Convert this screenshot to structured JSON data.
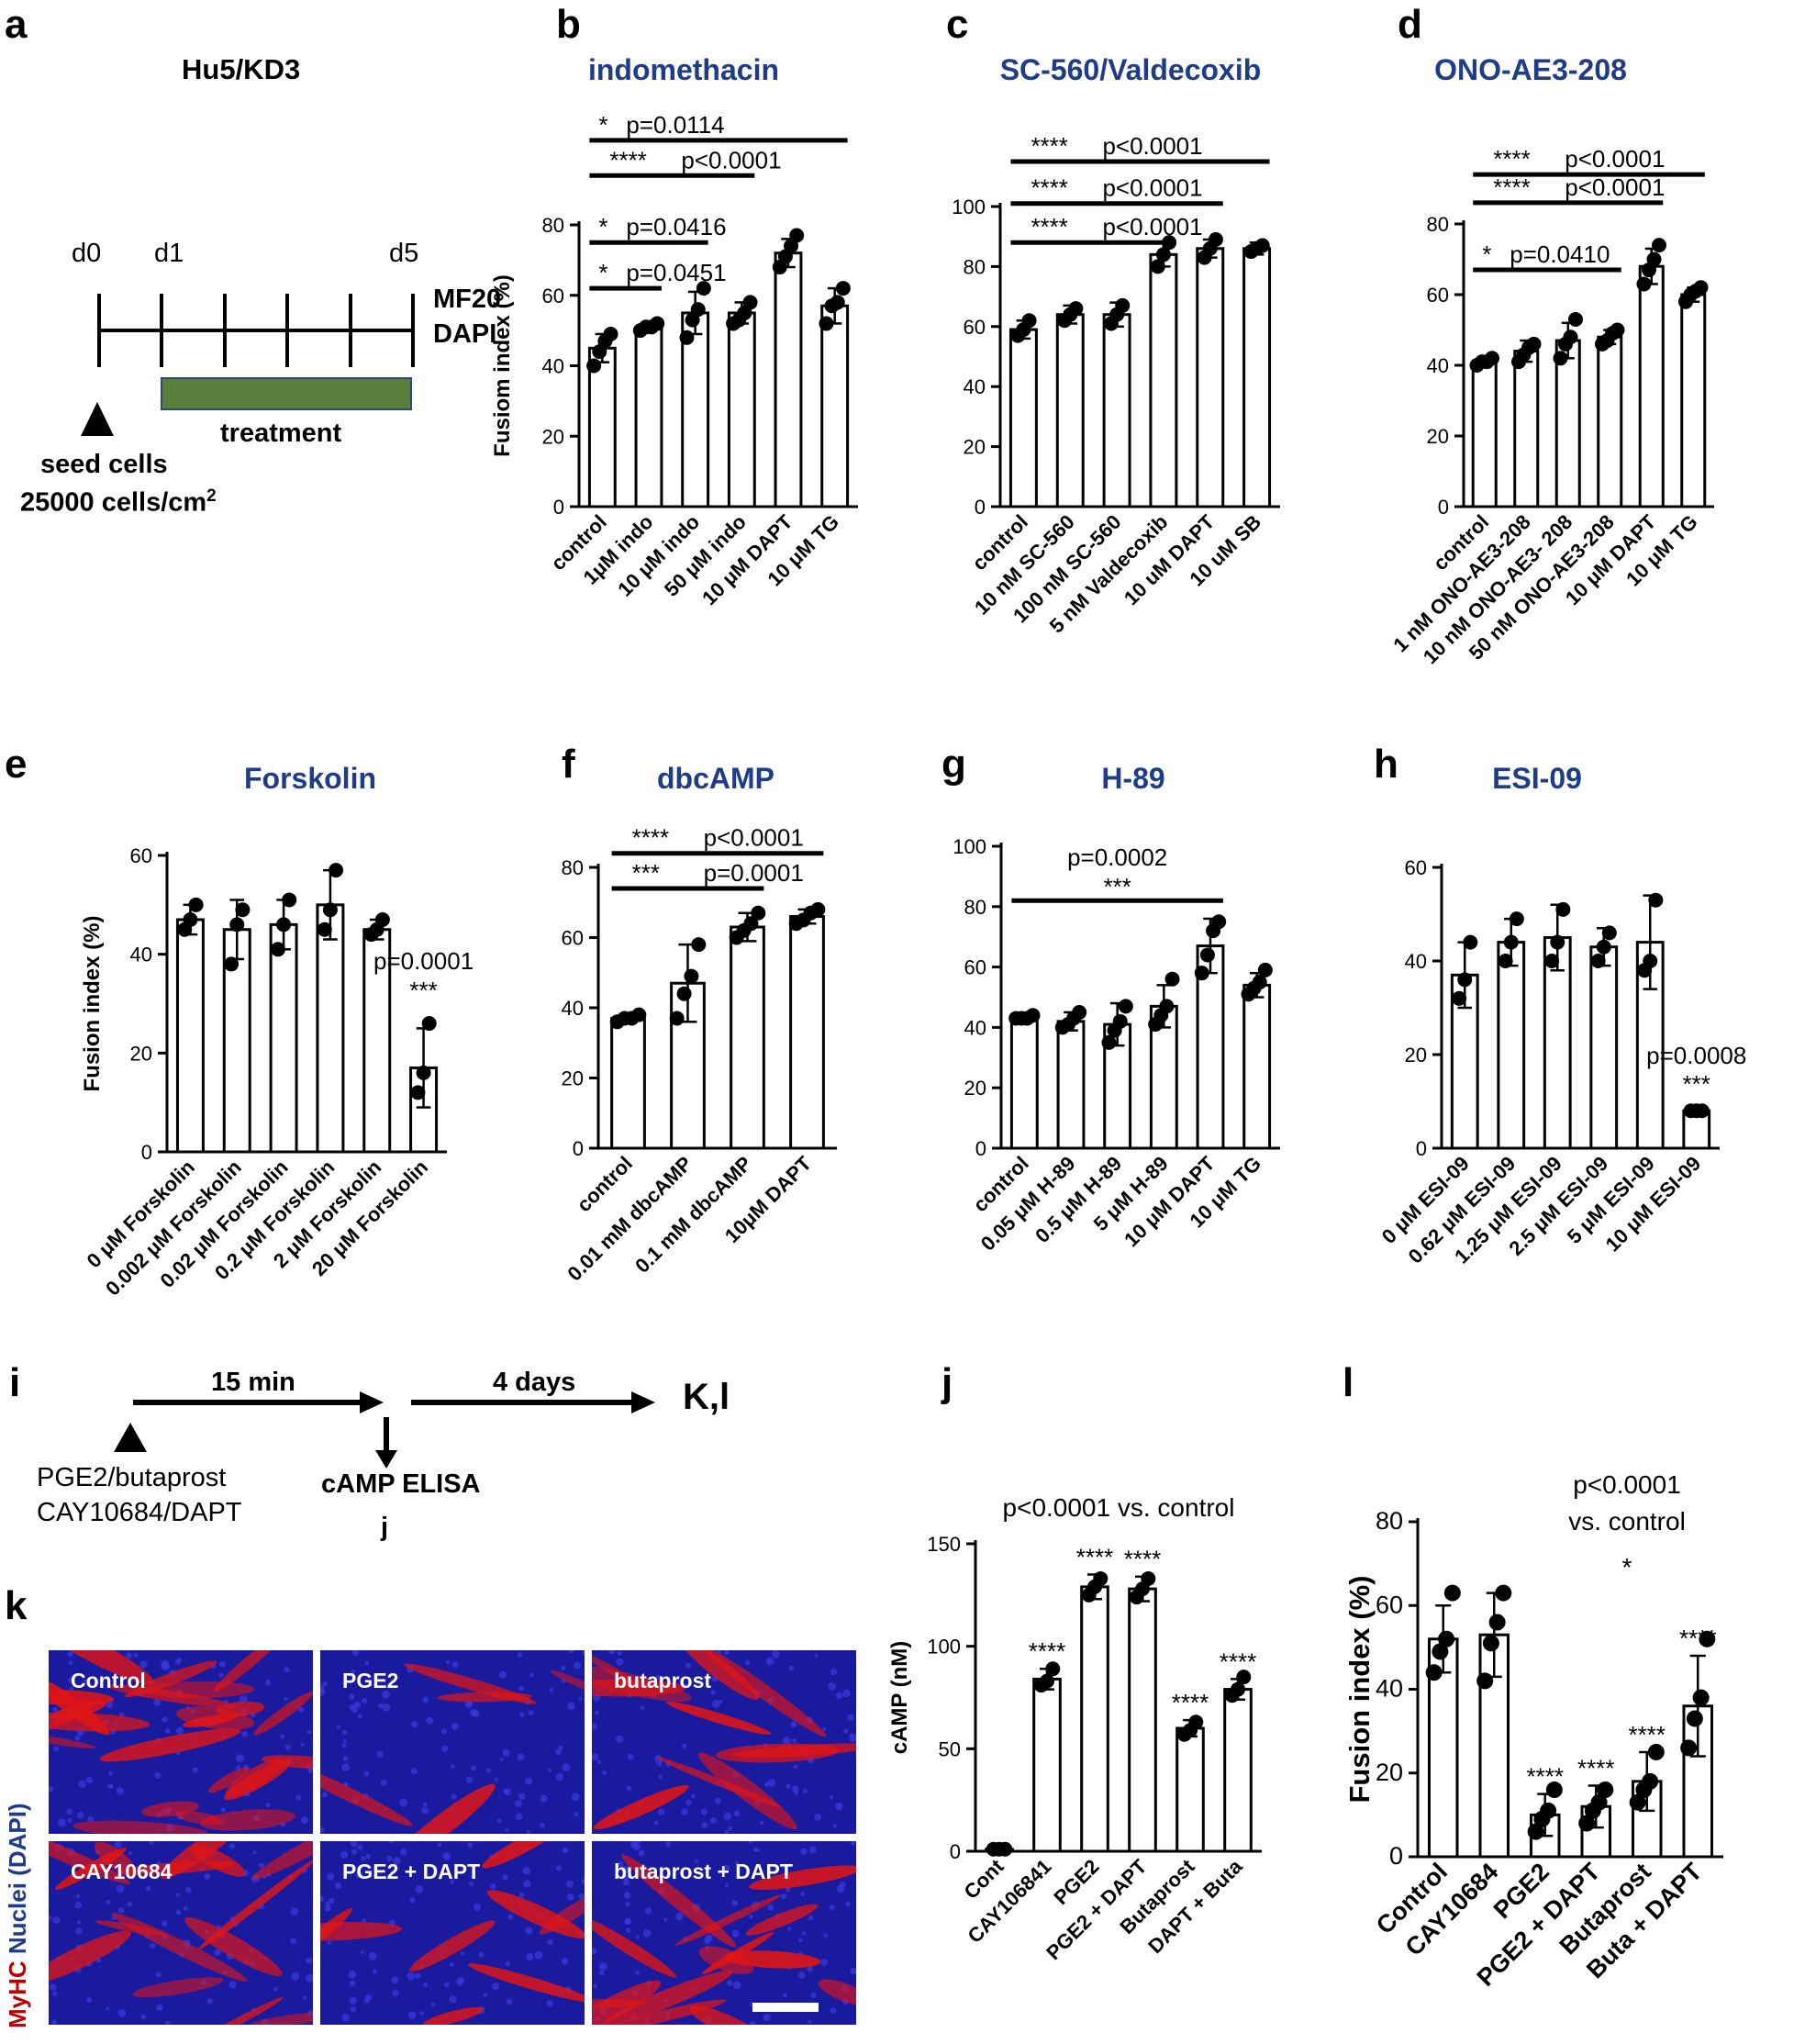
{
  "panel_letters": {
    "a": "a",
    "b": "b",
    "c": "c",
    "d": "d",
    "e": "e",
    "f": "f",
    "g": "g",
    "h": "h",
    "i": "i",
    "j": "j",
    "k": "k",
    "l": "l"
  },
  "panel_a": {
    "title": "Hu5/KD3",
    "days": [
      "d0",
      "d1",
      "d5"
    ],
    "stain_line1": "MF20",
    "stain_line2": "DAPI",
    "treatment_label": "treatment",
    "seed_line1": "seed cells",
    "seed_line2_prefix": "25000 cells/cm",
    "seed_superscript": "2",
    "treatment_color": "#5a7f3c"
  },
  "panel_i": {
    "duration1": "15 min",
    "duration2": "4 days",
    "end_label": "K,l",
    "agents_line1": "PGE2/butaprost",
    "agents_line2": "CAY10684/DAPT",
    "assay": "cAMP ELISA",
    "assay_ref": "j"
  },
  "panel_k": {
    "side_label_red": "MyHC",
    "side_label_blue": "Nuclei (DAPI)",
    "images": [
      "Control",
      "PGE2",
      "butaprost",
      "CAY10684",
      "PGE2  + DAPT",
      "butaprost + DAPT"
    ],
    "myhc_levels": [
      0.8,
      0.15,
      0.35,
      0.5,
      0.25,
      0.45
    ]
  },
  "colors": {
    "title_blue": "#1f3c88",
    "myhc_red": "#e01515",
    "dapi_blue": "#1a1a9e",
    "myhc_label_red": "#c00000",
    "dapi_label_blue": "#1f3c88"
  },
  "chart_data": [
    {
      "id": "b",
      "type": "bar",
      "title": "indomethacin",
      "ylabel": "Fusiom index (%)",
      "ylim": [
        0,
        80
      ],
      "yticks": [
        0,
        20,
        40,
        60,
        80
      ],
      "categories": [
        "control",
        "1μM indo",
        "10 μM indo",
        "50 μM indo",
        "10 μM DAPT",
        "10 μM TG"
      ],
      "values": [
        45,
        51,
        55,
        55,
        72,
        57
      ],
      "errors": [
        4,
        1,
        6,
        3,
        4,
        5
      ],
      "points": [
        [
          40,
          44,
          47,
          49
        ],
        [
          50,
          51,
          51,
          52
        ],
        [
          48,
          53,
          56,
          62
        ],
        [
          52,
          53,
          55,
          58
        ],
        [
          68,
          71,
          74,
          77
        ],
        [
          52,
          57,
          58,
          62
        ]
      ],
      "brackets": [
        {
          "from": 0,
          "to": 1,
          "y": 62,
          "stars": "*",
          "label": "p=0.0451"
        },
        {
          "from": 0,
          "to": 2,
          "y": 75,
          "stars": "*",
          "label": "p=0.0416"
        },
        {
          "from": 0,
          "to": 3,
          "y": 94,
          "stars": "****",
          "label": "p<0.0001"
        },
        {
          "from": 0,
          "to": 5,
          "y": 104,
          "stars": "*",
          "label": "p=0.0114"
        }
      ]
    },
    {
      "id": "c",
      "type": "bar",
      "title": "SC-560/Valdecoxib",
      "ylabel": "",
      "ylim": [
        0,
        100
      ],
      "yticks": [
        0,
        20,
        40,
        60,
        80,
        100
      ],
      "categories": [
        "control",
        "10 nM SC-560",
        "100 nM SC-560",
        "5 nM Valdecoxib",
        "10 uM DAPT",
        "10 uM SB"
      ],
      "values": [
        59,
        64,
        64,
        84,
        86,
        86
      ],
      "errors": [
        3,
        3,
        4,
        4,
        3,
        2
      ],
      "points": [
        [
          57,
          59,
          62
        ],
        [
          62,
          64,
          66
        ],
        [
          61,
          64,
          67
        ],
        [
          80,
          84,
          88
        ],
        [
          83,
          86,
          89
        ],
        [
          85,
          86,
          87
        ]
      ],
      "brackets": [
        {
          "from": 0,
          "to": 3,
          "y": 88,
          "stars": "****",
          "label": "p<0.0001"
        },
        {
          "from": 0,
          "to": 4,
          "y": 101,
          "stars": "****",
          "label": "p<0.0001"
        },
        {
          "from": 0,
          "to": 5,
          "y": 115,
          "stars": "****",
          "label": "p<0.0001"
        }
      ]
    },
    {
      "id": "d",
      "type": "bar",
      "title": "ONO-AE3-208",
      "ylabel": "",
      "ylim": [
        0,
        80
      ],
      "yticks": [
        0,
        20,
        40,
        60,
        80
      ],
      "categories": [
        "control",
        "1 nM ONO-AE3-208",
        "10 nM ONO-AE3- 208",
        "50 nM ONO-AE3-208",
        "10 μM DAPT",
        "10 μM TG"
      ],
      "values": [
        41,
        44,
        47,
        48,
        68,
        60
      ],
      "errors": [
        1,
        3,
        5,
        2,
        5,
        2
      ],
      "points": [
        [
          40,
          41,
          41,
          42
        ],
        [
          41,
          43,
          45,
          46
        ],
        [
          42,
          46,
          48,
          53
        ],
        [
          46,
          47,
          49,
          50
        ],
        [
          63,
          67,
          70,
          74
        ],
        [
          58,
          60,
          61,
          62
        ]
      ],
      "brackets": [
        {
          "from": 0,
          "to": 3,
          "y": 67,
          "stars": "*",
          "label": "p=0.0410"
        },
        {
          "from": 0,
          "to": 4,
          "y": 86,
          "stars": "****",
          "label": "p<0.0001"
        },
        {
          "from": 0,
          "to": 5,
          "y": 94,
          "stars": "****",
          "label": "p<0.0001"
        }
      ]
    },
    {
      "id": "e",
      "type": "bar",
      "title": "Forskolin",
      "ylabel": "Fusion index (%)",
      "ylim": [
        0,
        60
      ],
      "yticks": [
        0,
        20,
        40,
        60
      ],
      "categories": [
        "0 μM Forskolin",
        "0.002 μM Forskolin",
        "0.02 μM Forskolin",
        "0.2 μM Forskolin",
        "2 μM Forskolin",
        "20 μM Forskolin"
      ],
      "values": [
        47,
        45,
        46,
        50,
        45,
        17
      ],
      "errors": [
        3,
        6,
        5,
        7,
        2,
        8
      ],
      "points": [
        [
          45,
          47,
          50
        ],
        [
          38,
          46,
          49
        ],
        [
          41,
          46,
          51
        ],
        [
          45,
          49,
          57
        ],
        [
          44,
          45,
          47
        ],
        [
          12,
          16,
          26
        ]
      ],
      "brackets": [],
      "annotations": [
        {
          "bar": 5,
          "y": 37,
          "text": "p=0.0001"
        },
        {
          "bar": 5,
          "y": 31,
          "text": "***"
        }
      ]
    },
    {
      "id": "f",
      "type": "bar",
      "title": "dbcAMP",
      "ylabel": "",
      "ylim": [
        0,
        80
      ],
      "yticks": [
        0,
        20,
        40,
        60,
        80
      ],
      "categories": [
        "control",
        "0.01 mM dbcAMP",
        "0.1 mM dbcAMP",
        "10μM DAPT"
      ],
      "values": [
        37,
        47,
        63,
        66
      ],
      "errors": [
        1,
        11,
        4,
        2
      ],
      "points": [
        [
          36,
          37,
          37,
          38
        ],
        [
          37,
          44,
          49,
          58
        ],
        [
          60,
          62,
          64,
          67
        ],
        [
          64,
          65,
          67,
          68
        ]
      ],
      "brackets": [
        {
          "from": 0,
          "to": 2,
          "y": 74,
          "stars": "***",
          "label": "p=0.0001"
        },
        {
          "from": 0,
          "to": 3,
          "y": 84,
          "stars": "****",
          "label": "p<0.0001"
        }
      ]
    },
    {
      "id": "g",
      "type": "bar",
      "title": "H-89",
      "ylabel": "",
      "ylim": [
        0,
        100
      ],
      "yticks": [
        0,
        20,
        40,
        60,
        80,
        100
      ],
      "categories": [
        "control",
        "0.05 μM H-89",
        "0.5 μM H-89",
        "5 μM H-89",
        "10 μM DAPT",
        "10 μM TG"
      ],
      "values": [
        43,
        42,
        41,
        47,
        67,
        54
      ],
      "errors": [
        1,
        3,
        7,
        7,
        9,
        4
      ],
      "points": [
        [
          43,
          43,
          43,
          44
        ],
        [
          40,
          41,
          43,
          45
        ],
        [
          35,
          39,
          42,
          47
        ],
        [
          41,
          44,
          47,
          56
        ],
        [
          58,
          64,
          72,
          75
        ],
        [
          51,
          53,
          55,
          59
        ]
      ],
      "brackets": [
        {
          "from": 0,
          "to": 4,
          "y": 82,
          "stars": "***",
          "label": "p=0.0002",
          "above": true
        }
      ]
    },
    {
      "id": "h",
      "type": "bar",
      "title": "ESI-09",
      "ylabel": "",
      "ylim": [
        0,
        60
      ],
      "yticks": [
        0,
        20,
        40,
        60
      ],
      "categories": [
        "0 μM ESI-09",
        "0.62 μM ESI-09",
        "1.25 μM ESI-09",
        "2.5 μM ESI-09",
        "5 μM ESI-09",
        "10 μM ESI-09"
      ],
      "values": [
        37,
        44,
        45,
        43,
        44,
        8
      ],
      "errors": [
        7,
        5,
        7,
        4,
        10,
        0.5
      ],
      "points": [
        [
          32,
          36,
          44
        ],
        [
          40,
          44,
          49
        ],
        [
          40,
          44,
          51
        ],
        [
          40,
          43,
          46
        ],
        [
          38,
          40,
          53
        ],
        [
          8,
          8,
          8
        ]
      ],
      "brackets": [],
      "annotations": [
        {
          "bar": 5,
          "y": 18,
          "text": "p=0.0008"
        },
        {
          "bar": 5,
          "y": 12,
          "text": "***"
        }
      ]
    },
    {
      "id": "j",
      "type": "bar",
      "title": "",
      "ylabel": "cAMP (nM)",
      "ylim": [
        0,
        150
      ],
      "yticks": [
        0,
        50,
        100,
        150
      ],
      "categories": [
        "Cont",
        "CAY106841",
        "PGE2",
        "PGE2 + DAPT",
        "Butaprost",
        "DAPT + Buta"
      ],
      "values": [
        1,
        84,
        129,
        128,
        60,
        79
      ],
      "errors": [
        0.5,
        5,
        6,
        6,
        4,
        5
      ],
      "points": [
        [
          1,
          1,
          1
        ],
        [
          81,
          83,
          89
        ],
        [
          125,
          129,
          133
        ],
        [
          124,
          128,
          133
        ],
        [
          57,
          59,
          63
        ],
        [
          76,
          79,
          85
        ]
      ],
      "brackets": [],
      "header_line": "p<0.0001 vs. control",
      "bar_stars": [
        null,
        "****",
        "****",
        "****",
        "****",
        "****"
      ]
    },
    {
      "id": "l",
      "type": "bar",
      "title": "",
      "ylabel": "Fusion index (%)",
      "ylim": [
        0,
        80
      ],
      "yticks": [
        0,
        20,
        40,
        60,
        80
      ],
      "categories": [
        "Control",
        "CAY10684",
        "PGE2",
        "PGE2 + DAPT",
        "Butaprost",
        "Buta + DAPT"
      ],
      "values": [
        52,
        53,
        10,
        12,
        18,
        36
      ],
      "errors": [
        8,
        10,
        5,
        5,
        7,
        12
      ],
      "points": [
        [
          44,
          49,
          52,
          63
        ],
        [
          42,
          51,
          56,
          63
        ],
        [
          6,
          9,
          11,
          16
        ],
        [
          8,
          11,
          13,
          16
        ],
        [
          13,
          16,
          18,
          25
        ],
        [
          26,
          33,
          38,
          52
        ]
      ],
      "brackets": [],
      "header_line1": "p<0.0001",
      "header_line2": "vs. control",
      "header_star": "*",
      "bar_stars": [
        null,
        null,
        "****",
        "****",
        "****",
        "****"
      ]
    }
  ]
}
